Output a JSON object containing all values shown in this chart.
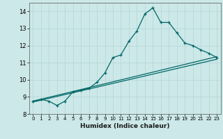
{
  "xlabel": "Humidex (Indice chaleur)",
  "bg_color": "#cce8e8",
  "grid_color": "#b0d4d4",
  "line_color": "#006666",
  "xlim": [
    -0.5,
    23.5
  ],
  "ylim": [
    8.0,
    14.5
  ],
  "xticks": [
    0,
    1,
    2,
    3,
    4,
    5,
    6,
    7,
    8,
    9,
    10,
    11,
    12,
    13,
    14,
    15,
    16,
    17,
    18,
    19,
    20,
    21,
    22,
    23
  ],
  "yticks": [
    8,
    9,
    10,
    11,
    12,
    13,
    14
  ],
  "curve1_x": [
    0,
    1,
    2,
    3,
    4,
    5,
    6,
    7,
    8,
    9,
    10,
    11,
    12,
    13,
    14,
    15,
    16,
    17,
    18,
    19,
    20,
    21,
    22,
    23
  ],
  "curve1_y": [
    8.75,
    8.85,
    8.75,
    8.5,
    8.75,
    9.3,
    9.4,
    9.5,
    9.85,
    10.4,
    11.3,
    11.45,
    12.25,
    12.85,
    13.85,
    14.2,
    13.35,
    13.35,
    12.75,
    12.15,
    12.0,
    11.75,
    11.55,
    11.3
  ],
  "line3_x": [
    0,
    23
  ],
  "line3_y": [
    8.7,
    11.2
  ],
  "line4_x": [
    0,
    23
  ],
  "line4_y": [
    8.75,
    11.35
  ]
}
